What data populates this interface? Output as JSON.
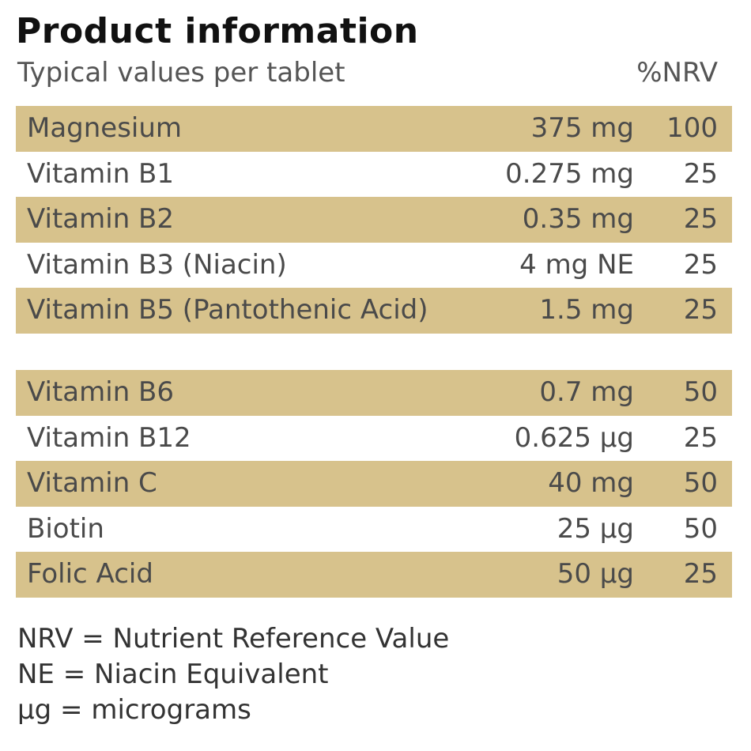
{
  "header": {
    "title": "Product information",
    "subtitle": "Typical values per tablet",
    "nrv_column_label": "%NRV"
  },
  "colors": {
    "row_shade": "#d7c28c",
    "text": "#4a4a4a",
    "title": "#111111"
  },
  "table_1": [
    {
      "name": "Magnesium",
      "amount": "375 mg",
      "nrv": "100"
    },
    {
      "name": "Vitamin B1",
      "amount": "0.275 mg",
      "nrv": "25"
    },
    {
      "name": "Vitamin B2",
      "amount": "0.35 mg",
      "nrv": "25"
    },
    {
      "name": "Vitamin B3 (Niacin)",
      "amount": "4 mg NE",
      "nrv": "25"
    },
    {
      "name": "Vitamin B5 (Pantothenic Acid)",
      "amount": "1.5 mg",
      "nrv": "25"
    }
  ],
  "table_2": [
    {
      "name": "Vitamin B6",
      "amount": "0.7 mg",
      "nrv": "50"
    },
    {
      "name": "Vitamin B12",
      "amount": "0.625 µg",
      "nrv": "25"
    },
    {
      "name": "Vitamin C",
      "amount": "40 mg",
      "nrv": "50"
    },
    {
      "name": "Biotin",
      "amount": "25 µg",
      "nrv": "50"
    },
    {
      "name": "Folic Acid",
      "amount": "50 µg",
      "nrv": "25"
    }
  ],
  "footnotes": [
    "NRV = Nutrient Reference Value",
    "NE = Niacin Equivalent",
    "µg = micrograms"
  ]
}
